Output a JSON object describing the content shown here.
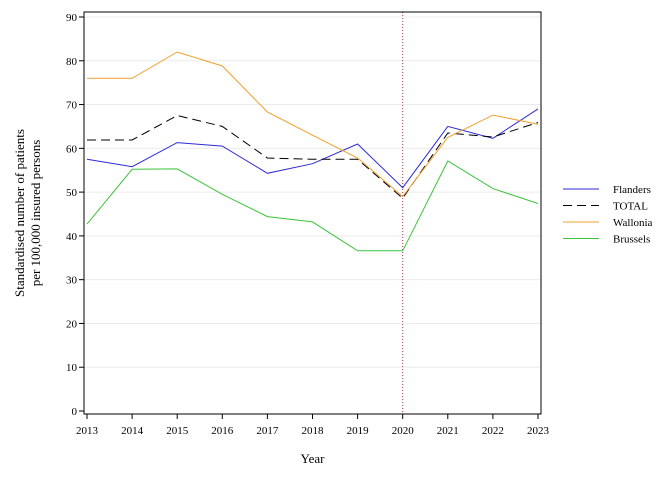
{
  "chart_data": {
    "type": "line",
    "title": "",
    "xlabel": "Year",
    "ylabel_lines": [
      "Standardised number of patients",
      "per 100,000 insured persons"
    ],
    "x": [
      2013,
      2014,
      2015,
      2016,
      2017,
      2018,
      2019,
      2020,
      2021,
      2022,
      2023
    ],
    "xlim": [
      2013,
      2023
    ],
    "ylim": [
      0,
      90
    ],
    "yticks": [
      0,
      10,
      20,
      30,
      40,
      50,
      60,
      70,
      80,
      90
    ],
    "grid": "horizontal",
    "legend_position": "right",
    "reference_line": {
      "x": 2020,
      "color": "#b03050",
      "style": "dotted"
    },
    "series": [
      {
        "name": "Flanders",
        "color": "#2b2bd6",
        "dash": "",
        "values": [
          57.5,
          55.8,
          61.3,
          60.5,
          54.3,
          56.5,
          61.0,
          51.0,
          65.0,
          62.3,
          69.0
        ]
      },
      {
        "name": "TOTAL",
        "color": "#000000",
        "dash": "9,5",
        "values": [
          61.9,
          61.9,
          67.5,
          65.0,
          57.8,
          57.5,
          57.5,
          48.6,
          63.5,
          62.6,
          65.9
        ]
      },
      {
        "name": "Wallonia",
        "color": "#f0a030",
        "dash": "",
        "values": [
          76.0,
          76.0,
          82.0,
          78.8,
          68.3,
          63.0,
          57.8,
          49.0,
          62.5,
          67.6,
          65.5
        ]
      },
      {
        "name": "Brussels",
        "color": "#3cc43c",
        "dash": "",
        "values": [
          42.7,
          55.2,
          55.3,
          49.5,
          44.4,
          43.2,
          36.6,
          36.6,
          57.1,
          50.8,
          47.4
        ]
      }
    ]
  }
}
